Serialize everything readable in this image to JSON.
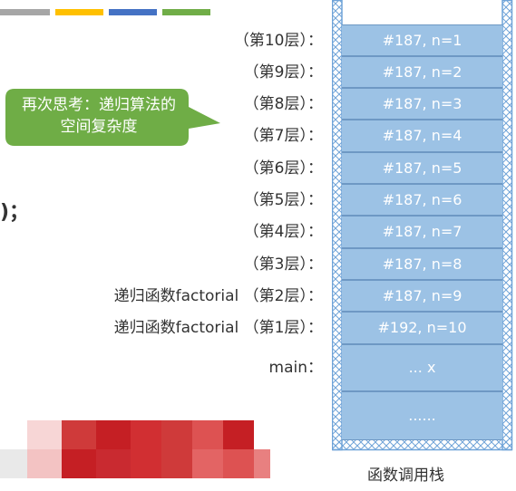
{
  "colors": {
    "legend": [
      "#a6a6a6",
      "#ffc000",
      "#4472c4",
      "#70ad47"
    ],
    "callout_bg": "#6fad46",
    "frame_bg": "#9cc2e5",
    "frame_border": "#6e98c4",
    "hatch": "#6fa3d8"
  },
  "callout": {
    "text": "再次思考：递归算法的空间复杂度"
  },
  "cropped_code": ")；",
  "stack": {
    "caption": "函数调用栈",
    "rows": [
      {
        "label": "（第10层）：",
        "frame": "#187, n=1"
      },
      {
        "label": "（第9层）：",
        "frame": "#187, n=2"
      },
      {
        "label": "（第8层）：",
        "frame": "#187, n=3"
      },
      {
        "label": "（第7层）：",
        "frame": "#187, n=4"
      },
      {
        "label": "（第6层）：",
        "frame": "#187, n=5"
      },
      {
        "label": "（第5层）：",
        "frame": "#187, n=6"
      },
      {
        "label": "（第4层）：",
        "frame": "#187, n=7"
      },
      {
        "label": "（第3层）：",
        "frame": "#187, n=8"
      },
      {
        "label": "递归函数factorial （第2层）：",
        "frame": "#187, n=9"
      },
      {
        "label": "递归函数factorial （第1层）：",
        "frame": "#192, n=10"
      },
      {
        "label": "main：",
        "frame": "... x"
      },
      {
        "label": "",
        "frame": "......"
      }
    ]
  }
}
